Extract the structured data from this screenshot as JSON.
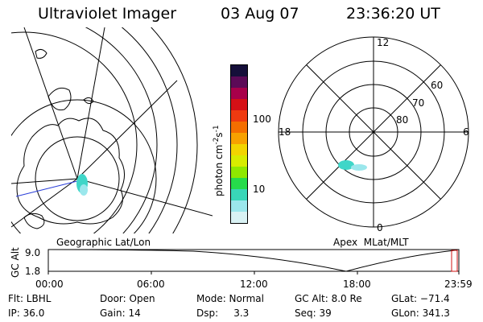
{
  "header": {
    "instrument": "Ultraviolet Imager",
    "date": "03 Aug 07",
    "time": "23:36:20 UT"
  },
  "colorbar": {
    "unit_prefix": "photon cm",
    "unit_exp1": "-2",
    "unit_s": "s",
    "unit_exp2": "-1",
    "ticks": [
      "100",
      "10"
    ],
    "colors": [
      "#150f3a",
      "#5c0a57",
      "#a8004a",
      "#d51016",
      "#ef3a10",
      "#f46e00",
      "#f7a100",
      "#f2d400",
      "#d7ec00",
      "#8fe800",
      "#26dc4b",
      "#39d6b8",
      "#9be7ec",
      "#d9f2f4"
    ]
  },
  "geo_map": {
    "caption": "Geographic Lat/Lon"
  },
  "polar_map": {
    "caption": "Apex  MLat/MLT",
    "mlt_labels": {
      "top": "12",
      "left": "18",
      "right": "6",
      "bottom": "0"
    },
    "lat_labels": [
      "60",
      "70",
      "80"
    ]
  },
  "altitude_plot": {
    "ylabel": "GC Alt",
    "yticks": [
      "9.0",
      "1.8"
    ],
    "xticks": [
      "00:00",
      "06:00",
      "12:00",
      "18:00",
      "23:59"
    ]
  },
  "info": {
    "filter": "Flt: LBHL",
    "ip": "IP: 36.0",
    "door": "Door: Open",
    "gain": "Gain: 14",
    "mode": "Mode: Normal",
    "dsp": "Dsp:     3.3",
    "gc_alt": "GC Alt: 8.0 Re",
    "seq": "Seq: 39",
    "glat": "GLat: −71.4",
    "glon": "GLon: 341.3"
  },
  "colors": {
    "aurora": "#3fd6c8",
    "track_marker": "#d01010",
    "grid": "#000000"
  }
}
